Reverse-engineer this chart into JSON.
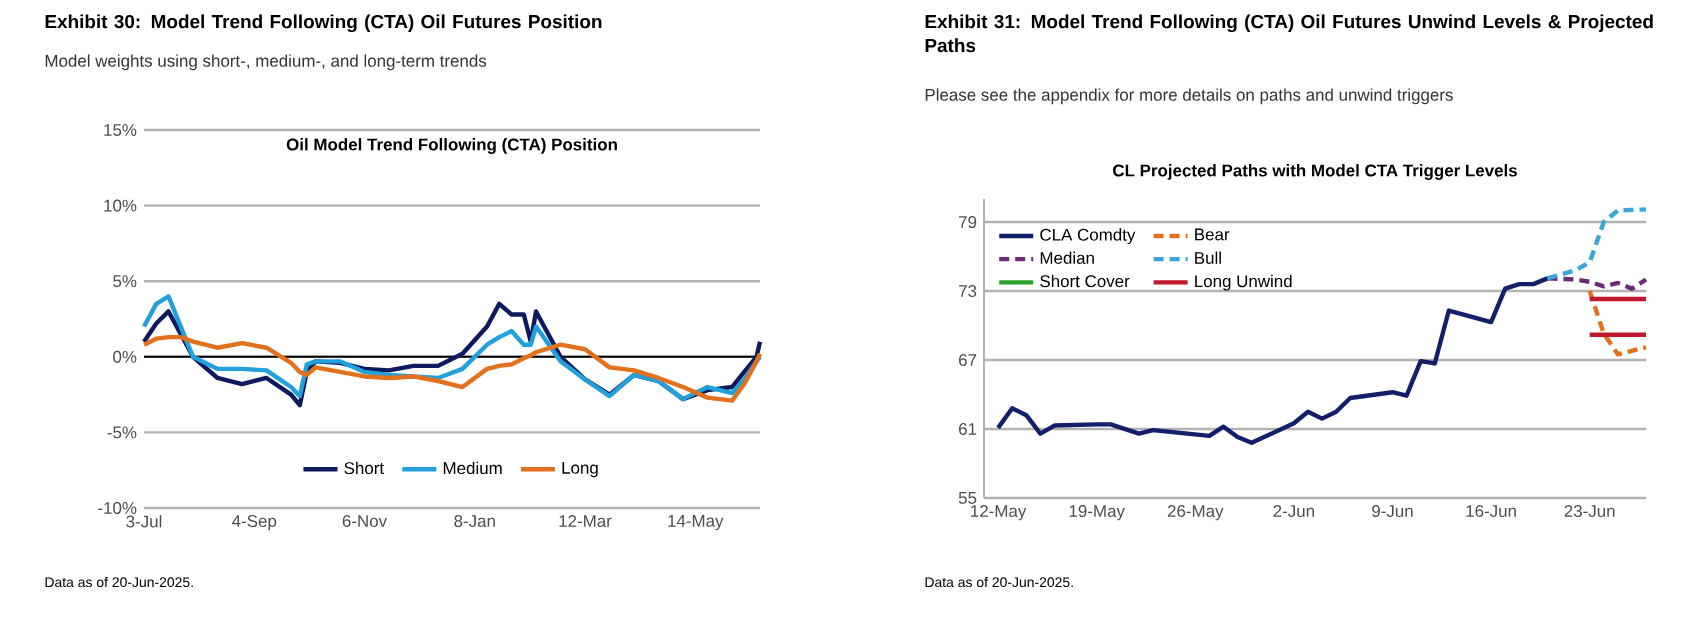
{
  "chart_data": [
    {
      "type": "line",
      "title": "Exhibit 30: Model Trend Following (CTA) Oil Futures Position",
      "subtitle": "Model weights using short-, medium-, and long-term trends",
      "annotations": [
        "Oil Model Trend Following (CTA) Position",
        "Data as of 20-Jun-2025."
      ],
      "xlim": [
        "2024-07-03",
        "2025-06-20"
      ],
      "xticks": [
        {
          "value": "2024-07-03",
          "label": "3-Jul"
        },
        {
          "value": "2024-09-04",
          "label": "4-Sep"
        },
        {
          "value": "2024-11-06",
          "label": "6-Nov"
        },
        {
          "value": "2025-01-08",
          "label": "8-Jan"
        },
        {
          "value": "2025-03-12",
          "label": "12-Mar"
        },
        {
          "value": "2025-05-14",
          "label": "14-May"
        }
      ],
      "ylim": [
        -10,
        15
      ],
      "yticks": [
        {
          "value": -10,
          "label": "-10%"
        },
        {
          "value": -5,
          "label": "-5%"
        },
        {
          "value": 0,
          "label": "0%"
        },
        {
          "value": 5,
          "label": "5%"
        },
        {
          "value": 10,
          "label": "10%"
        },
        {
          "value": 15,
          "label": "15%"
        }
      ],
      "grid": "y",
      "legend": "bottom",
      "ref_lines": [
        {
          "axis": "y",
          "value": 0,
          "color": "#000000"
        }
      ],
      "x": [
        "2024-07-03",
        "2024-07-10",
        "2024-07-17",
        "2024-07-24",
        "2024-07-31",
        "2024-08-14",
        "2024-08-28",
        "2024-09-11",
        "2024-09-25",
        "2024-09-30",
        "2024-10-04",
        "2024-10-09",
        "2024-10-23",
        "2024-11-06",
        "2024-11-20",
        "2024-12-04",
        "2024-12-18",
        "2025-01-01",
        "2025-01-15",
        "2025-01-22",
        "2025-01-29",
        "2025-02-05",
        "2025-02-09",
        "2025-02-12",
        "2025-02-26",
        "2025-03-12",
        "2025-03-26",
        "2025-04-09",
        "2025-04-23",
        "2025-05-07",
        "2025-05-21",
        "2025-06-04",
        "2025-06-11",
        "2025-06-18",
        "2025-06-20"
      ],
      "series": [
        {
          "name": "Short",
          "color": "#0d1a5e",
          "values": [
            1.0,
            2.2,
            3.0,
            1.5,
            0.0,
            -1.4,
            -1.8,
            -1.4,
            -2.5,
            -3.2,
            -1.0,
            -0.3,
            -0.4,
            -0.8,
            -0.9,
            -0.6,
            -0.6,
            0.2,
            2.0,
            3.5,
            2.8,
            2.8,
            1.0,
            3.0,
            0.0,
            -1.5,
            -2.5,
            -1.2,
            -1.6,
            -2.8,
            -2.2,
            -2.0,
            -1.0,
            0.0,
            1.0
          ]
        },
        {
          "name": "Medium",
          "color": "#22a0dc",
          "values": [
            2.0,
            3.5,
            4.0,
            2.0,
            0.0,
            -0.8,
            -0.8,
            -0.9,
            -2.0,
            -2.6,
            -0.5,
            -0.3,
            -0.3,
            -1.0,
            -1.2,
            -1.3,
            -1.4,
            -0.8,
            0.8,
            1.3,
            1.7,
            0.8,
            0.8,
            2.0,
            -0.3,
            -1.5,
            -2.6,
            -1.2,
            -1.6,
            -2.8,
            -2.0,
            -2.4,
            -1.5,
            -0.3,
            0.0
          ]
        },
        {
          "name": "Long",
          "color": "#e2711d",
          "values": [
            0.8,
            1.2,
            1.3,
            1.3,
            1.0,
            0.6,
            0.9,
            0.6,
            -0.4,
            -1.0,
            -1.2,
            -0.7,
            -1.0,
            -1.3,
            -1.4,
            -1.3,
            -1.6,
            -2.0,
            -0.8,
            -0.6,
            -0.5,
            -0.1,
            0.1,
            0.3,
            0.8,
            0.5,
            -0.7,
            -0.9,
            -1.4,
            -2.0,
            -2.7,
            -2.9,
            -1.8,
            -0.3,
            0.2
          ]
        }
      ]
    },
    {
      "type": "line",
      "title": "Exhibit 31: Model Trend Following (CTA) Oil Futures Unwind Levels & Projected Paths",
      "subtitle": "Please see the appendix for more details on paths and unwind triggers",
      "annotations": [
        "CL Projected Paths with Model CTA Trigger Levels",
        "Data as of 20-Jun-2025."
      ],
      "xlim": [
        "2025-05-11",
        "2025-06-27"
      ],
      "xticks": [
        {
          "value": "2025-05-12",
          "label": "12-May"
        },
        {
          "value": "2025-05-19",
          "label": "19-May"
        },
        {
          "value": "2025-05-26",
          "label": "26-May"
        },
        {
          "value": "2025-06-02",
          "label": "2-Jun"
        },
        {
          "value": "2025-06-09",
          "label": "9-Jun"
        },
        {
          "value": "2025-06-16",
          "label": "16-Jun"
        },
        {
          "value": "2025-06-23",
          "label": "23-Jun"
        }
      ],
      "ylim": [
        55,
        81
      ],
      "yticks": [
        55,
        61,
        67,
        73,
        79
      ],
      "grid": "y",
      "legend": "top left",
      "series": [
        {
          "name": "CLA Comdty",
          "color": "#141f6b",
          "line_style": "solid",
          "x": [
            "2025-05-12",
            "2025-05-13",
            "2025-05-14",
            "2025-05-15",
            "2025-05-16",
            "2025-05-19",
            "2025-05-20",
            "2025-05-21",
            "2025-05-22",
            "2025-05-23",
            "2025-05-27",
            "2025-05-28",
            "2025-05-29",
            "2025-05-30",
            "2025-06-02",
            "2025-06-03",
            "2025-06-04",
            "2025-06-05",
            "2025-06-06",
            "2025-06-09",
            "2025-06-10",
            "2025-06-11",
            "2025-06-12",
            "2025-06-13",
            "2025-06-16",
            "2025-06-17",
            "2025-06-18",
            "2025-06-19",
            "2025-06-20"
          ],
          "values": [
            61.1,
            62.8,
            62.2,
            60.6,
            61.3,
            61.4,
            61.4,
            61.0,
            60.6,
            60.9,
            60.4,
            61.2,
            60.3,
            59.8,
            61.5,
            62.5,
            61.9,
            62.5,
            63.7,
            64.2,
            63.9,
            66.9,
            66.7,
            71.3,
            70.3,
            73.2,
            73.6,
            73.6,
            74.1
          ]
        },
        {
          "name": "Bear",
          "color": "#e2711d",
          "line_style": "dashed",
          "x": [
            "2025-06-23",
            "2025-06-24",
            "2025-06-25",
            "2025-06-27"
          ],
          "values": [
            73.0,
            69.3,
            67.5,
            68.1
          ]
        },
        {
          "name": "Median",
          "color": "#6b2a7a",
          "line_style": "dashed",
          "x": [
            "2025-06-20",
            "2025-06-22",
            "2025-06-23",
            "2025-06-24",
            "2025-06-25",
            "2025-06-26",
            "2025-06-27"
          ],
          "values": [
            74.1,
            74.0,
            73.8,
            73.4,
            73.7,
            73.2,
            74.0
          ]
        },
        {
          "name": "Bull",
          "color": "#38a7d8",
          "line_style": "dashed",
          "x": [
            "2025-06-20",
            "2025-06-22",
            "2025-06-23",
            "2025-06-24",
            "2025-06-25",
            "2025-06-27"
          ],
          "values": [
            74.1,
            74.8,
            75.5,
            79.0,
            80.0,
            80.1
          ]
        },
        {
          "name": "Short Cover",
          "color": "#2ca02c",
          "line_style": "solid"
        },
        {
          "name": "Long Unwind",
          "color": "#c0192b",
          "line_style": "solid",
          "x": [
            "2025-06-23",
            "2025-06-27"
          ],
          "values": [
            72.3,
            72.3
          ]
        },
        {
          "color": "#c0192b",
          "line_style": "solid",
          "x": [
            "2025-06-23",
            "2025-06-27"
          ],
          "values": [
            69.2,
            69.2
          ]
        }
      ]
    }
  ]
}
